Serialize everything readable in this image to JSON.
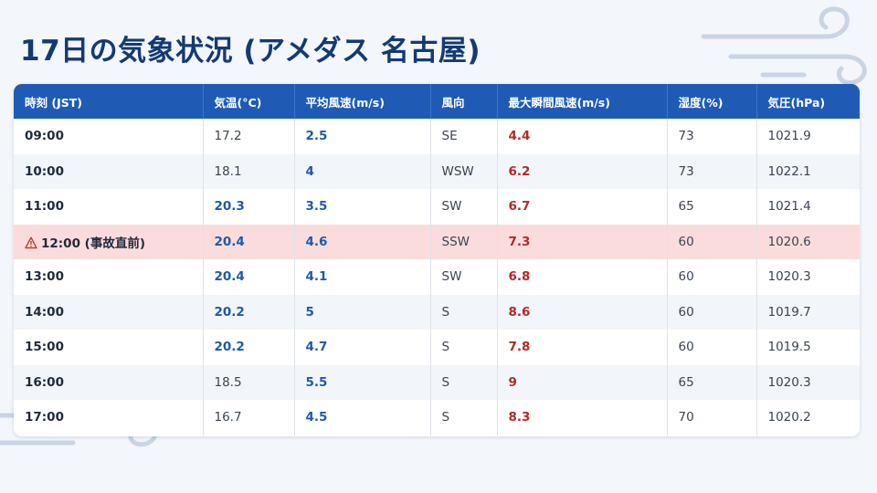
{
  "title": "17日の気象状況 (アメダス 名古屋)",
  "colors": {
    "header_bg": "#1f5bb5",
    "title": "#143a72",
    "highlight_row": "#fbdcdc",
    "warm_value": "#1e5aa8",
    "gust": "#b12a2a"
  },
  "table": {
    "headers": [
      "時刻 (JST)",
      "気温(°C)",
      "平均風速(m/s)",
      "風向",
      "最大瞬間風速(m/s)",
      "湿度(%)",
      "気圧(hPa)"
    ],
    "rows": [
      {
        "time": "09:00",
        "temp": "17.2",
        "temp_emph": false,
        "wind": "2.5",
        "dir": "SE",
        "gust": "4.4",
        "humidity": "73",
        "pressure": "1021.9",
        "highlight": false
      },
      {
        "time": "10:00",
        "temp": "18.1",
        "temp_emph": false,
        "wind": "4",
        "dir": "WSW",
        "gust": "6.2",
        "humidity": "73",
        "pressure": "1022.1",
        "highlight": false
      },
      {
        "time": "11:00",
        "temp": "20.3",
        "temp_emph": true,
        "wind": "3.5",
        "dir": "SW",
        "gust": "6.7",
        "humidity": "65",
        "pressure": "1021.4",
        "highlight": false
      },
      {
        "time": "12:00 (事故直前)",
        "temp": "20.4",
        "temp_emph": true,
        "wind": "4.6",
        "dir": "SSW",
        "gust": "7.3",
        "humidity": "60",
        "pressure": "1020.6",
        "highlight": true,
        "icon": "warning-icon"
      },
      {
        "time": "13:00",
        "temp": "20.4",
        "temp_emph": true,
        "wind": "4.1",
        "dir": "SW",
        "gust": "6.8",
        "humidity": "60",
        "pressure": "1020.3",
        "highlight": false
      },
      {
        "time": "14:00",
        "temp": "20.2",
        "temp_emph": true,
        "wind": "5",
        "dir": "S",
        "gust": "8.6",
        "humidity": "60",
        "pressure": "1019.7",
        "highlight": false
      },
      {
        "time": "15:00",
        "temp": "20.2",
        "temp_emph": true,
        "wind": "4.7",
        "dir": "S",
        "gust": "7.8",
        "humidity": "60",
        "pressure": "1019.5",
        "highlight": false
      },
      {
        "time": "16:00",
        "temp": "18.5",
        "temp_emph": false,
        "wind": "5.5",
        "dir": "S",
        "gust": "9",
        "humidity": "65",
        "pressure": "1020.3",
        "highlight": false
      },
      {
        "time": "17:00",
        "temp": "16.7",
        "temp_emph": false,
        "wind": "4.5",
        "dir": "S",
        "gust": "8.3",
        "humidity": "70",
        "pressure": "1020.2",
        "highlight": false
      }
    ]
  }
}
